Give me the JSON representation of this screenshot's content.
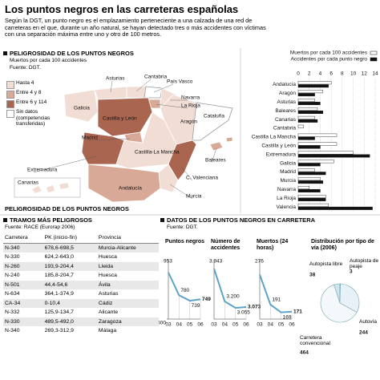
{
  "header": {
    "title": "Los puntos negros en las carreteras españolas",
    "intro": "Según la DGT, un punto negro es el emplazamiento perteneciente a una calzada de una red de carreteras en el que, durante un año natural, se hayan detectado tres o más accidentes con víctimas con una separación máxima entre uno y otro de 100 metros."
  },
  "map": {
    "title": "PELIGROSIDAD DE LOS PUNTOS NEGROS",
    "subtitle": "Muertos por cada 100 accidentes",
    "source": "Fuente: DGT.",
    "legend": [
      "Hasta 4",
      "Entre 4 y 8",
      "Entre 6 y 114",
      "Sin datos (competencias transferidas)"
    ],
    "regions": [
      "Asturias",
      "Cantabria",
      "País Vasco",
      "Galicia",
      "Navarra",
      "La Rioja",
      "Aragón",
      "Castilla y León",
      "Madrid",
      "Cataluña",
      "Baleares",
      "Extremadura",
      "Castilla-La Mancha",
      "C. Valenciana",
      "Canarias",
      "Andalucía",
      "Murcia"
    ],
    "footer": "PELIGROSIDAD DE LOS PUNTOS NEGROS"
  },
  "table": {
    "title": "TRAMOS MÁS PELIGROSOS",
    "source": "Fuente: RACE (Eurorap 2006)",
    "columns": [
      "Carretera",
      "PK (inicio-fin)",
      "Provincia"
    ],
    "rows": [
      [
        "N-340",
        "678,6-698,5",
        "Murcia-Alicante"
      ],
      [
        "N-330",
        "624,2-643,0",
        "Huesca"
      ],
      [
        "N-260",
        "193,9-204,4",
        "Lleida"
      ],
      [
        "N-240",
        "185,8-204,7",
        "Huesca"
      ],
      [
        "N-501",
        "44,4-54,6",
        "Ávila"
      ],
      [
        "N-634",
        "364,1-374,9",
        "Asturias"
      ],
      [
        "CA-34",
        "0-10,4",
        "Cádiz"
      ],
      [
        "N-332",
        "125,9-134,7",
        "Alicante"
      ],
      [
        "N-330",
        "489,5-492,0",
        "Zaragoza"
      ],
      [
        "N-340",
        "269,3-312,9",
        "Málaga"
      ]
    ]
  },
  "data_section": {
    "title": "DATOS DE LOS PUNTOS NEGROS EN CARRETERA",
    "source": "Fuente: DGT."
  },
  "chart_data": [
    {
      "type": "bar",
      "orientation": "horizontal",
      "categories": [
        "Andalucía",
        "Aragón",
        "Asturias",
        "Baleares",
        "Canarias",
        "Cantabria",
        "Castilla La Mancha",
        "Castilla y León",
        "Extremadura",
        "Galicia",
        "Madrid",
        "Murcia",
        "Navarra",
        "La Rioja",
        "Valencia"
      ],
      "series": [
        {
          "name": "Muertos por cada 100 accidentes",
          "color": "#ffffff",
          "values": [
            6,
            4.5,
            3,
            3.5,
            3,
            1,
            7,
            7,
            10,
            6.5,
            3,
            4,
            2,
            5,
            5.5
          ]
        },
        {
          "name": "Accidentes por cada punto negro",
          "color": "#111111",
          "values": [
            5.5,
            3,
            4,
            4.5,
            3.5,
            0,
            3,
            4,
            13,
            4,
            5,
            4.5,
            4,
            5,
            13.5
          ]
        }
      ],
      "xlim": [
        0,
        14
      ],
      "xticks": [
        0,
        2,
        4,
        6,
        8,
        10,
        12,
        14
      ],
      "grid": true
    },
    {
      "type": "line",
      "title": "Puntos negros",
      "categories": [
        "03",
        "04",
        "05",
        "06"
      ],
      "values": [
        953,
        780,
        739,
        749
      ],
      "color": "#5ba3c9",
      "ylim": [
        600,
        1000
      ],
      "yticks": [
        600
      ]
    },
    {
      "type": "line",
      "title": "Número de accidentes",
      "categories": [
        "03",
        "04",
        "05",
        "06"
      ],
      "values": [
        3943,
        3200,
        3055,
        3073
      ],
      "value_labels": [
        "3.943",
        "3.200",
        "3.055",
        "3.073"
      ],
      "color": "#5ba3c9",
      "ylim": [
        2800,
        4000
      ],
      "yticks": []
    },
    {
      "type": "line",
      "title": "Muertos (24 horas)",
      "categories": [
        "03",
        "04",
        "05",
        "06"
      ],
      "values": [
        276,
        191,
        169,
        171
      ],
      "color": "#5ba3c9",
      "ylim": [
        150,
        300
      ],
      "yticks": []
    },
    {
      "type": "pie",
      "title": "Distribución por tipo de vía (2006)",
      "categories": [
        "Autopista libre",
        "Autopista de peaje",
        "Autovía",
        "Carretera convencional"
      ],
      "values": [
        38,
        3,
        244,
        464
      ],
      "colors": [
        "#cfe3ef",
        "#ffffff",
        "#e8f1f7",
        "#f4f8fb"
      ]
    }
  ]
}
